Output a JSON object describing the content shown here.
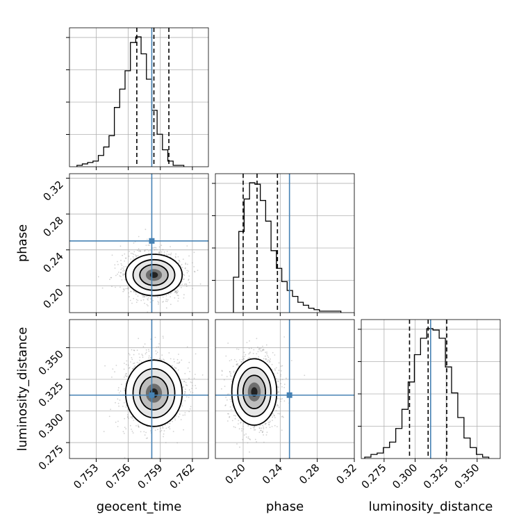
{
  "chart_data": {
    "type": "corner",
    "parameters": [
      {
        "name": "geocent_time",
        "xlim": [
          0.7505,
          0.7635
        ],
        "ticks": [
          "0.753",
          "0.756",
          "0.759",
          "0.762"
        ],
        "tick_values": [
          0.753,
          0.756,
          0.759,
          0.762
        ],
        "truth": 0.7582,
        "quantiles": [
          0.7568,
          0.7584,
          0.7598
        ],
        "histogram": {
          "bin_start": 0.7512,
          "bin_width": 0.0005,
          "counts": [
            1,
            2,
            3,
            4,
            8,
            14,
            22,
            42,
            55,
            68,
            88,
            92,
            80,
            62,
            40,
            23,
            12,
            4,
            1,
            1
          ]
        }
      },
      {
        "name": "phase",
        "xlim": [
          0.17,
          0.32
        ],
        "ticks": [
          "0.20",
          "0.24",
          "0.28",
          "0.32"
        ],
        "tick_values": [
          0.2,
          0.24,
          0.28,
          0.32
        ],
        "truth": 0.25,
        "quantiles": [
          0.2,
          0.215,
          0.237
        ],
        "histogram": {
          "bin_start": 0.1895,
          "bin_width": 0.0058,
          "counts": [
            24,
            55,
            77,
            88,
            87,
            76,
            62,
            42,
            30,
            21,
            15,
            11,
            7,
            5,
            3,
            2,
            1,
            1,
            1,
            1
          ]
        }
      },
      {
        "name": "luminosity_distance",
        "xlim": [
          0.2566,
          0.3686
        ],
        "ticks": [
          "0.275",
          "0.300",
          "0.325",
          "0.350"
        ],
        "tick_values": [
          0.275,
          0.3,
          0.325,
          0.35
        ],
        "truth": 0.3125,
        "quantiles": [
          0.2955,
          0.3105,
          0.3255
        ],
        "histogram": {
          "bin_start": 0.2594,
          "bin_width": 0.005,
          "counts": [
            1,
            3,
            4,
            8,
            12,
            22,
            36,
            56,
            76,
            88,
            95,
            94,
            88,
            67,
            48,
            30,
            15,
            8,
            3,
            1
          ]
        }
      }
    ],
    "truth_marker_color": "#4682b4",
    "contour_color": "#000000",
    "scatter_color": "#999999",
    "pair_densities": [
      {
        "x": "geocent_time",
        "y": "phase",
        "center": [
          0.7584,
          0.212
        ],
        "spread": [
          0.0012,
          0.011
        ]
      },
      {
        "x": "geocent_time",
        "y": "luminosity_distance",
        "center": [
          0.7584,
          0.314
        ],
        "spread": [
          0.0012,
          0.0125
        ]
      },
      {
        "x": "phase",
        "y": "luminosity_distance",
        "center": [
          0.212,
          0.315
        ],
        "spread": [
          0.011,
          0.0125
        ]
      }
    ],
    "grid": true
  }
}
